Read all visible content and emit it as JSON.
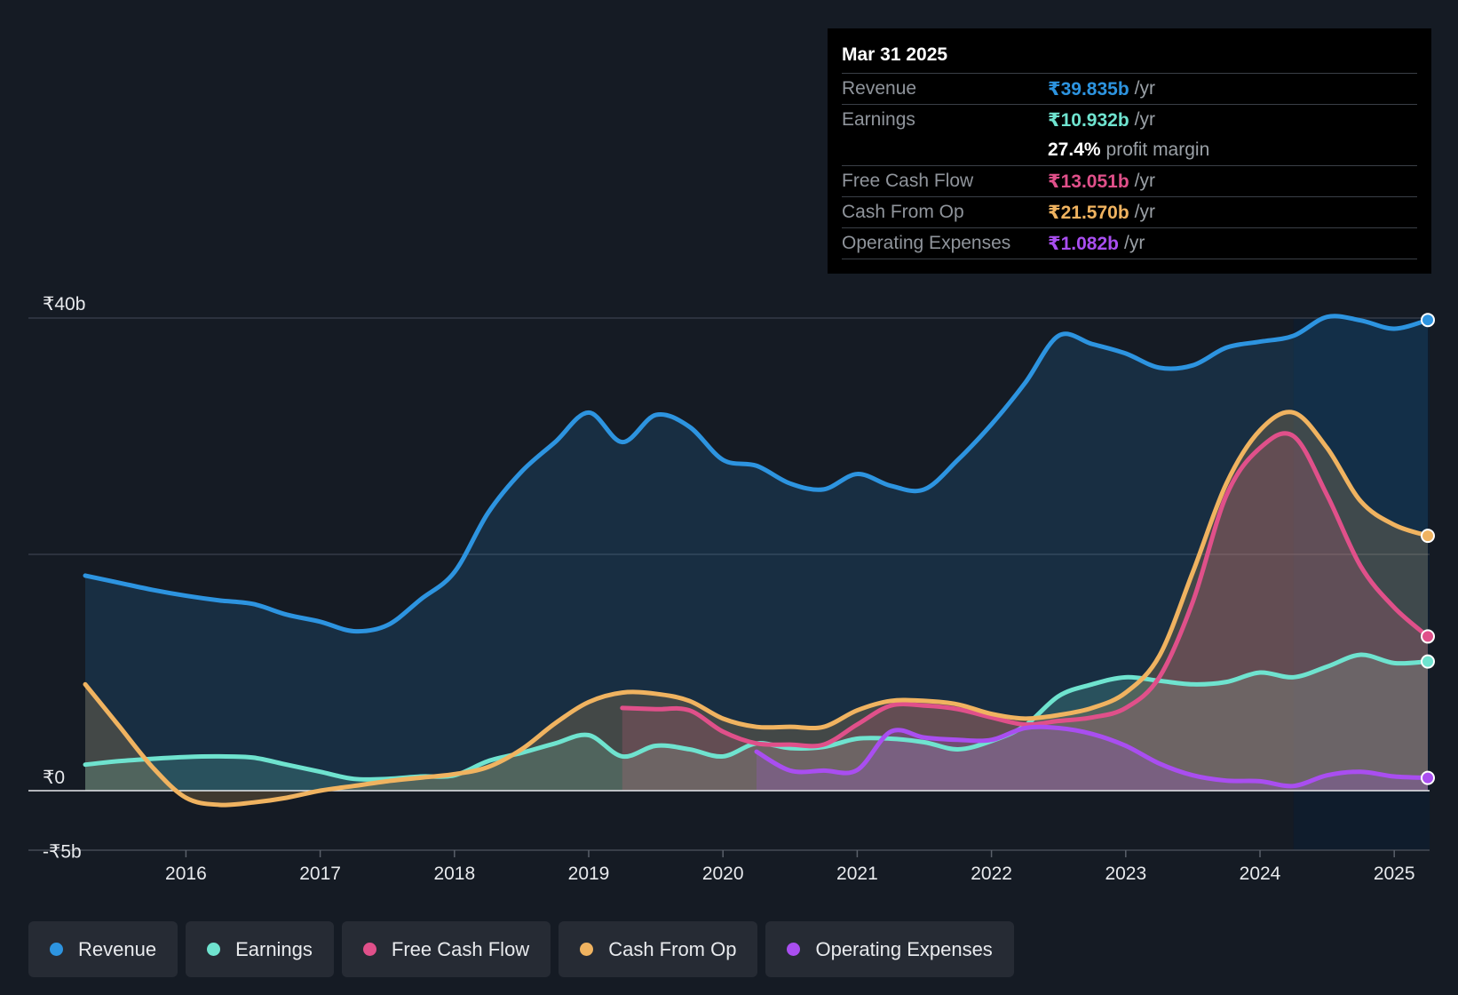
{
  "tooltip": {
    "date": "Mar 31 2025",
    "rows": [
      {
        "label": "Revenue",
        "value": "₹39.835b",
        "unit": "/yr",
        "color": "#2d94e0"
      },
      {
        "label": "Earnings",
        "value": "₹10.932b",
        "unit": "/yr",
        "color": "#6fe3cf"
      },
      {
        "label": "",
        "value": "27.4%",
        "unit": "profit margin",
        "color": "#ffffff"
      },
      {
        "label": "Free Cash Flow",
        "value": "₹13.051b",
        "unit": "/yr",
        "color": "#e0508a"
      },
      {
        "label": "Cash From Op",
        "value": "₹21.570b",
        "unit": "/yr",
        "color": "#f0b360"
      },
      {
        "label": "Operating Expenses",
        "value": "₹1.082b",
        "unit": "/yr",
        "color": "#a94ef0"
      }
    ]
  },
  "legend": [
    {
      "label": "Revenue",
      "color": "#2d94e0"
    },
    {
      "label": "Earnings",
      "color": "#6fe3cf"
    },
    {
      "label": "Free Cash Flow",
      "color": "#e0508a"
    },
    {
      "label": "Cash From Op",
      "color": "#f0b360"
    },
    {
      "label": "Operating Expenses",
      "color": "#a94ef0"
    }
  ],
  "chart_data": {
    "type": "area",
    "title": "",
    "xlabel": "",
    "ylabel": "",
    "y_axis_labels": [
      {
        "value": 40,
        "label": "₹40b"
      },
      {
        "value": 0,
        "label": "₹0"
      },
      {
        "value": -5,
        "label": "-₹5b"
      }
    ],
    "gridlines": [
      40,
      20
    ],
    "ylim": [
      -5,
      40
    ],
    "xlim": [
      2015.25,
      2025.25
    ],
    "x_ticks": [
      2016,
      2017,
      2018,
      2019,
      2020,
      2021,
      2022,
      2023,
      2024,
      2025
    ],
    "highlight_from": 2024.25,
    "series": [
      {
        "name": "Revenue",
        "color": "#2d94e0",
        "points": [
          [
            2015.25,
            18.2
          ],
          [
            2015.5,
            17.6
          ],
          [
            2015.75,
            17
          ],
          [
            2016,
            16.5
          ],
          [
            2016.25,
            16.1
          ],
          [
            2016.5,
            15.8
          ],
          [
            2016.75,
            14.9
          ],
          [
            2017,
            14.3
          ],
          [
            2017.25,
            13.5
          ],
          [
            2017.5,
            14
          ],
          [
            2017.75,
            16.2
          ],
          [
            2018,
            18.5
          ],
          [
            2018.25,
            23.5
          ],
          [
            2018.5,
            27
          ],
          [
            2018.75,
            29.5
          ],
          [
            2019,
            32
          ],
          [
            2019.25,
            29.5
          ],
          [
            2019.5,
            31.8
          ],
          [
            2019.75,
            30.8
          ],
          [
            2020,
            28
          ],
          [
            2020.25,
            27.5
          ],
          [
            2020.5,
            26
          ],
          [
            2020.75,
            25.5
          ],
          [
            2021,
            26.8
          ],
          [
            2021.25,
            25.8
          ],
          [
            2021.5,
            25.5
          ],
          [
            2021.75,
            28
          ],
          [
            2022,
            31
          ],
          [
            2022.25,
            34.5
          ],
          [
            2022.5,
            38.5
          ],
          [
            2022.75,
            37.8
          ],
          [
            2023,
            37
          ],
          [
            2023.25,
            35.8
          ],
          [
            2023.5,
            36
          ],
          [
            2023.75,
            37.5
          ],
          [
            2024,
            38
          ],
          [
            2024.25,
            38.5
          ],
          [
            2024.5,
            40.1
          ],
          [
            2024.75,
            39.8
          ],
          [
            2025,
            39.1
          ],
          [
            2025.25,
            39.835
          ]
        ]
      },
      {
        "name": "Earnings",
        "color": "#6fe3cf",
        "points": [
          [
            2015.25,
            2.2
          ],
          [
            2015.5,
            2.5
          ],
          [
            2015.75,
            2.7
          ],
          [
            2016,
            2.85
          ],
          [
            2016.25,
            2.9
          ],
          [
            2016.5,
            2.8
          ],
          [
            2016.75,
            2.2
          ],
          [
            2017,
            1.6
          ],
          [
            2017.25,
            1
          ],
          [
            2017.5,
            1
          ],
          [
            2017.75,
            1.2
          ],
          [
            2018,
            1.3
          ],
          [
            2018.25,
            2.5
          ],
          [
            2018.5,
            3.2
          ],
          [
            2018.75,
            4
          ],
          [
            2019,
            4.7
          ],
          [
            2019.25,
            2.9
          ],
          [
            2019.5,
            3.8
          ],
          [
            2019.75,
            3.5
          ],
          [
            2020,
            2.9
          ],
          [
            2020.25,
            4
          ],
          [
            2020.5,
            3.6
          ],
          [
            2020.75,
            3.7
          ],
          [
            2021,
            4.4
          ],
          [
            2021.25,
            4.4
          ],
          [
            2021.5,
            4.1
          ],
          [
            2021.75,
            3.5
          ],
          [
            2022,
            4.2
          ],
          [
            2022.25,
            5.5
          ],
          [
            2022.5,
            8
          ],
          [
            2022.75,
            9
          ],
          [
            2023,
            9.6
          ],
          [
            2023.25,
            9.3
          ],
          [
            2023.5,
            9
          ],
          [
            2023.75,
            9.2
          ],
          [
            2024,
            10
          ],
          [
            2024.25,
            9.6
          ],
          [
            2024.5,
            10.5
          ],
          [
            2024.75,
            11.5
          ],
          [
            2025,
            10.8
          ],
          [
            2025.25,
            10.932
          ]
        ]
      },
      {
        "name": "Free Cash Flow",
        "color": "#e0508a",
        "points": [
          [
            2019.25,
            7
          ],
          [
            2019.5,
            6.9
          ],
          [
            2019.75,
            6.8
          ],
          [
            2020,
            5
          ],
          [
            2020.25,
            4
          ],
          [
            2020.5,
            3.9
          ],
          [
            2020.75,
            3.9
          ],
          [
            2021,
            5.6
          ],
          [
            2021.25,
            7.2
          ],
          [
            2021.5,
            7.2
          ],
          [
            2021.75,
            6.9
          ],
          [
            2022,
            6.2
          ],
          [
            2022.25,
            5.6
          ],
          [
            2022.5,
            5.9
          ],
          [
            2022.75,
            6.2
          ],
          [
            2023,
            7
          ],
          [
            2023.25,
            9.6
          ],
          [
            2023.5,
            16
          ],
          [
            2023.75,
            25
          ],
          [
            2024,
            29
          ],
          [
            2024.25,
            30
          ],
          [
            2024.5,
            25
          ],
          [
            2024.75,
            19
          ],
          [
            2025,
            15.5
          ],
          [
            2025.25,
            13.051
          ]
        ]
      },
      {
        "name": "Cash From Op",
        "color": "#f0b360",
        "points": [
          [
            2015.25,
            9
          ],
          [
            2015.5,
            5.5
          ],
          [
            2015.75,
            2
          ],
          [
            2016,
            -0.6
          ],
          [
            2016.25,
            -1.2
          ],
          [
            2016.5,
            -1
          ],
          [
            2016.75,
            -0.6
          ],
          [
            2017,
            0
          ],
          [
            2017.25,
            0.4
          ],
          [
            2017.5,
            0.8
          ],
          [
            2017.75,
            1.1
          ],
          [
            2018,
            1.4
          ],
          [
            2018.25,
            2
          ],
          [
            2018.5,
            3.5
          ],
          [
            2018.75,
            5.7
          ],
          [
            2019,
            7.5
          ],
          [
            2019.25,
            8.3
          ],
          [
            2019.5,
            8.2
          ],
          [
            2019.75,
            7.6
          ],
          [
            2020,
            6.1
          ],
          [
            2020.25,
            5.4
          ],
          [
            2020.5,
            5.4
          ],
          [
            2020.75,
            5.4
          ],
          [
            2021,
            6.8
          ],
          [
            2021.25,
            7.6
          ],
          [
            2021.5,
            7.6
          ],
          [
            2021.75,
            7.3
          ],
          [
            2022,
            6.5
          ],
          [
            2022.25,
            6.1
          ],
          [
            2022.5,
            6.4
          ],
          [
            2022.75,
            7
          ],
          [
            2023,
            8.3
          ],
          [
            2023.25,
            11.4
          ],
          [
            2023.5,
            18.5
          ],
          [
            2023.75,
            26
          ],
          [
            2024,
            30.5
          ],
          [
            2024.25,
            32
          ],
          [
            2024.5,
            29
          ],
          [
            2024.75,
            24.5
          ],
          [
            2025,
            22.5
          ],
          [
            2025.25,
            21.57
          ]
        ]
      },
      {
        "name": "Operating Expenses",
        "color": "#a94ef0",
        "points": [
          [
            2020.25,
            3.3
          ],
          [
            2020.5,
            1.7
          ],
          [
            2020.75,
            1.7
          ],
          [
            2021,
            1.75
          ],
          [
            2021.25,
            5
          ],
          [
            2021.5,
            4.5
          ],
          [
            2021.75,
            4.3
          ],
          [
            2022,
            4.3
          ],
          [
            2022.25,
            5.3
          ],
          [
            2022.5,
            5.3
          ],
          [
            2022.75,
            4.8
          ],
          [
            2023,
            3.8
          ],
          [
            2023.25,
            2.3
          ],
          [
            2023.5,
            1.3
          ],
          [
            2023.75,
            0.85
          ],
          [
            2024,
            0.8
          ],
          [
            2024.25,
            0.4
          ],
          [
            2024.5,
            1.3
          ],
          [
            2024.75,
            1.6
          ],
          [
            2025,
            1.2
          ],
          [
            2025.25,
            1.082
          ]
        ]
      }
    ]
  }
}
